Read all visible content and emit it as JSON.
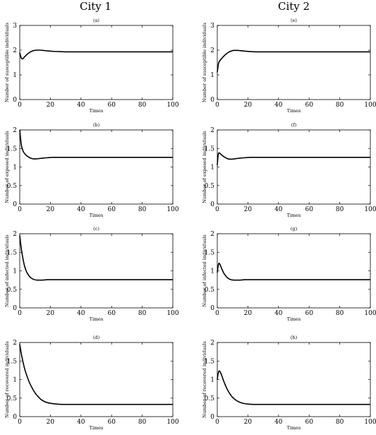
{
  "columns": [
    "City 1",
    "City 2"
  ],
  "chart_data": [
    {
      "type": "line",
      "panel": "(a)",
      "column": "City 1",
      "xlabel": "Times",
      "ylabel": "Number of susceptible individuals",
      "xlim": [
        0,
        100
      ],
      "ylim": [
        0,
        3
      ],
      "xticks": [
        0,
        20,
        40,
        60,
        80,
        100
      ],
      "yticks": [
        0,
        1,
        2,
        3
      ],
      "series": [
        {
          "x": [
            0,
            1,
            2,
            3,
            5,
            7,
            9,
            11,
            13,
            15,
            18,
            22,
            26,
            30,
            40,
            60,
            80,
            100
          ],
          "y": [
            1.9,
            1.68,
            1.65,
            1.72,
            1.84,
            1.93,
            1.98,
            2.0,
            2.0,
            1.99,
            1.97,
            1.95,
            1.94,
            1.93,
            1.93,
            1.93,
            1.93,
            1.93
          ]
        }
      ]
    },
    {
      "type": "line",
      "panel": "(b)",
      "column": "City 1",
      "xlabel": "Times",
      "ylabel": "Number of exposed individuals",
      "xlim": [
        0,
        100
      ],
      "ylim": [
        0,
        2
      ],
      "xticks": [
        0,
        20,
        40,
        60,
        80,
        100
      ],
      "yticks": [
        0,
        0.5,
        1,
        1.5,
        2
      ],
      "series": [
        {
          "x": [
            0,
            1,
            2,
            3,
            5,
            7,
            9,
            11,
            13,
            15,
            18,
            22,
            26,
            30,
            40,
            60,
            80,
            100
          ],
          "y": [
            2.0,
            1.6,
            1.45,
            1.37,
            1.29,
            1.24,
            1.22,
            1.22,
            1.23,
            1.24,
            1.25,
            1.26,
            1.26,
            1.26,
            1.26,
            1.26,
            1.26,
            1.26
          ]
        }
      ]
    },
    {
      "type": "line",
      "panel": "(c)",
      "column": "City 1",
      "xlabel": "Times",
      "ylabel": "Number of infected individuals",
      "xlim": [
        0,
        100
      ],
      "ylim": [
        0,
        2
      ],
      "xticks": [
        0,
        20,
        40,
        60,
        80,
        100
      ],
      "yticks": [
        0,
        0.5,
        1,
        1.5,
        2
      ],
      "series": [
        {
          "x": [
            0,
            1,
            2,
            3,
            4,
            5,
            7,
            9,
            11,
            13,
            15,
            18,
            22,
            26,
            30,
            40,
            60,
            80,
            100
          ],
          "y": [
            1.95,
            1.6,
            1.35,
            1.15,
            1.02,
            0.93,
            0.82,
            0.77,
            0.75,
            0.75,
            0.75,
            0.76,
            0.76,
            0.76,
            0.76,
            0.76,
            0.76,
            0.76,
            0.76
          ]
        }
      ]
    },
    {
      "type": "line",
      "panel": "(d)",
      "column": "City 1",
      "xlabel": "Times",
      "ylabel": "Number of recovered individuals",
      "xlim": [
        0,
        100
      ],
      "ylim": [
        0,
        2
      ],
      "xticks": [
        0,
        20,
        40,
        60,
        80,
        100
      ],
      "yticks": [
        0,
        0.5,
        1,
        1.5,
        2
      ],
      "series": [
        {
          "x": [
            0,
            1,
            2,
            3,
            4,
            6,
            8,
            10,
            12,
            14,
            16,
            18,
            20,
            24,
            28,
            32,
            40,
            60,
            80,
            100
          ],
          "y": [
            1.95,
            1.7,
            1.5,
            1.32,
            1.18,
            0.95,
            0.78,
            0.64,
            0.54,
            0.46,
            0.41,
            0.38,
            0.36,
            0.34,
            0.33,
            0.33,
            0.33,
            0.33,
            0.33,
            0.33
          ]
        }
      ]
    },
    {
      "type": "line",
      "panel": "(e)",
      "column": "City 2",
      "xlabel": "Times",
      "ylabel": "Number of susceptible individuals",
      "xlim": [
        0,
        100
      ],
      "ylim": [
        0,
        3
      ],
      "xticks": [
        0,
        20,
        40,
        60,
        80,
        100
      ],
      "yticks": [
        0,
        1,
        2,
        3
      ],
      "series": [
        {
          "x": [
            0,
            0.5,
            1,
            2,
            3,
            5,
            7,
            9,
            11,
            13,
            15,
            18,
            22,
            26,
            30,
            40,
            60,
            80,
            100
          ],
          "y": [
            1.1,
            1.35,
            1.5,
            1.6,
            1.67,
            1.8,
            1.9,
            1.96,
            1.99,
            1.99,
            1.98,
            1.96,
            1.94,
            1.93,
            1.93,
            1.93,
            1.93,
            1.93,
            1.93
          ]
        }
      ]
    },
    {
      "type": "line",
      "panel": "(f)",
      "column": "City 2",
      "xlabel": "Times",
      "ylabel": "Number of exposed individuals",
      "xlim": [
        0,
        100
      ],
      "ylim": [
        0,
        2
      ],
      "xticks": [
        0,
        20,
        40,
        60,
        80,
        100
      ],
      "yticks": [
        0,
        0.5,
        1,
        1.5,
        2
      ],
      "series": [
        {
          "x": [
            0,
            0.5,
            1,
            2,
            3,
            5,
            7,
            9,
            11,
            13,
            15,
            18,
            22,
            26,
            30,
            40,
            60,
            80,
            100
          ],
          "y": [
            1.05,
            1.3,
            1.38,
            1.36,
            1.32,
            1.26,
            1.22,
            1.21,
            1.22,
            1.23,
            1.24,
            1.25,
            1.26,
            1.26,
            1.26,
            1.26,
            1.26,
            1.26,
            1.26
          ]
        }
      ]
    },
    {
      "type": "line",
      "panel": "(g)",
      "column": "City 2",
      "xlabel": "Times",
      "ylabel": "Number of infected individuals",
      "xlim": [
        0,
        100
      ],
      "ylim": [
        0,
        2
      ],
      "xticks": [
        0,
        20,
        40,
        60,
        80,
        100
      ],
      "yticks": [
        0,
        0.5,
        1,
        1.5,
        2
      ],
      "series": [
        {
          "x": [
            0,
            0.5,
            1,
            1.5,
            2,
            3,
            4,
            5,
            7,
            9,
            11,
            13,
            15,
            18,
            22,
            26,
            30,
            40,
            60,
            80,
            100
          ],
          "y": [
            0.95,
            1.12,
            1.2,
            1.19,
            1.15,
            1.05,
            0.96,
            0.89,
            0.8,
            0.76,
            0.75,
            0.75,
            0.75,
            0.76,
            0.76,
            0.76,
            0.76,
            0.76,
            0.76,
            0.76,
            0.76
          ]
        }
      ]
    },
    {
      "type": "line",
      "panel": "(h)",
      "column": "City 2",
      "xlabel": "Times",
      "ylabel": "Number of recovered individuals",
      "xlim": [
        0,
        100
      ],
      "ylim": [
        0,
        2
      ],
      "xticks": [
        0,
        20,
        40,
        60,
        80,
        100
      ],
      "yticks": [
        0,
        0.5,
        1,
        1.5,
        2
      ],
      "series": [
        {
          "x": [
            0,
            0.5,
            1,
            1.5,
            2,
            3,
            4,
            6,
            8,
            10,
            12,
            14,
            16,
            18,
            20,
            24,
            28,
            32,
            40,
            60,
            80,
            100
          ],
          "y": [
            1.0,
            1.15,
            1.22,
            1.23,
            1.2,
            1.1,
            0.98,
            0.78,
            0.63,
            0.52,
            0.45,
            0.4,
            0.37,
            0.35,
            0.34,
            0.33,
            0.33,
            0.33,
            0.33,
            0.33,
            0.33,
            0.33
          ]
        }
      ]
    }
  ]
}
